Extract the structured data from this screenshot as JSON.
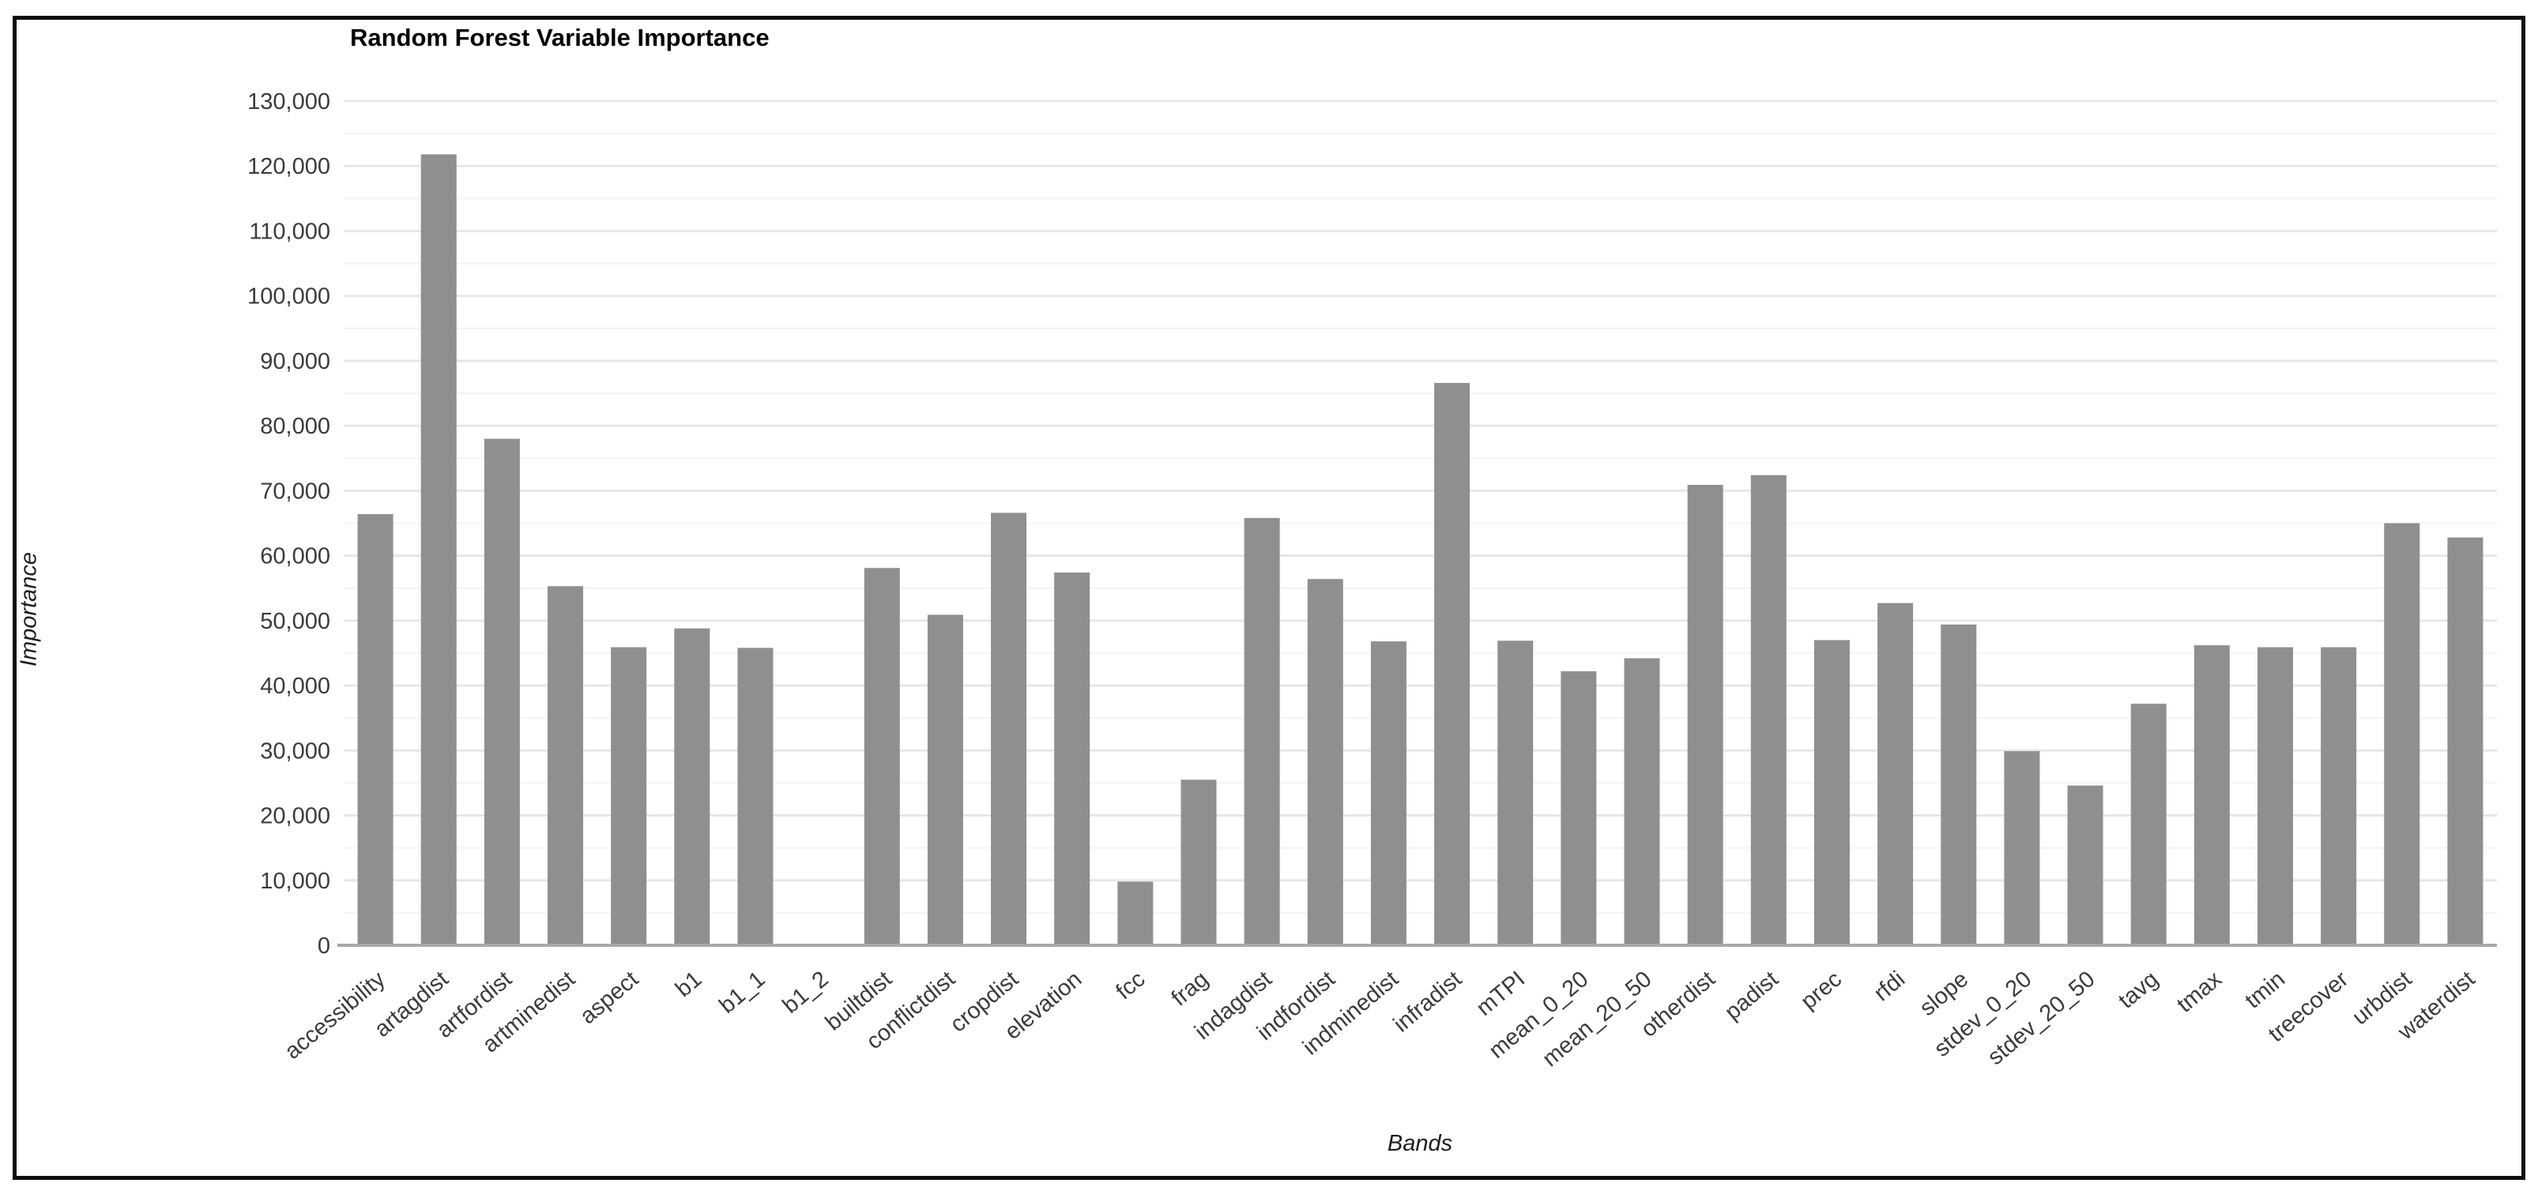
{
  "window": {
    "background": "#ffffff",
    "frame_border_color": "#0e0e0e"
  },
  "chart_data": {
    "type": "bar",
    "title": "Random Forest Variable Importance",
    "xlabel": "Bands",
    "ylabel": "Importance",
    "legend": "none",
    "grid": "horizontal, major every 10000 with faint minor every 5000",
    "ylim": [
      0,
      130000
    ],
    "y_major_step": 10000,
    "y_minor_step": 5000,
    "y_tick_labels": [
      "0",
      "10,000",
      "20,000",
      "30,000",
      "40,000",
      "50,000",
      "60,000",
      "70,000",
      "80,000",
      "90,000",
      "100,000",
      "110,000",
      "120,000",
      "130,000"
    ],
    "categories": [
      "accessibility",
      "artagdist",
      "artfordist",
      "artminedist",
      "aspect",
      "b1",
      "b1_1",
      "b1_2",
      "builtdist",
      "conflictdist",
      "cropdist",
      "elevation",
      "fcc",
      "frag",
      "indagdist",
      "indfordist",
      "indminedist",
      "infradist",
      "mTPI",
      "mean_0_20",
      "mean_20_50",
      "otherdist",
      "padist",
      "prec",
      "rfdi",
      "slope",
      "stdev_0_20",
      "stdev_20_50",
      "tavg",
      "tmax",
      "tmin",
      "treecover",
      "urbdist",
      "waterdist"
    ],
    "values": [
      66400,
      121800,
      78000,
      55300,
      45900,
      48800,
      45800,
      0,
      58100,
      50900,
      66600,
      57400,
      9800,
      25500,
      65800,
      56400,
      46800,
      86600,
      46900,
      42200,
      44200,
      70900,
      72400,
      47000,
      52700,
      49400,
      29900,
      24600,
      37200,
      46200,
      45900,
      45900,
      65000,
      62800
    ],
    "bar_color": "#8f8f8f",
    "major_gridline_color": "#e7e7e7",
    "minor_gridline_color": "#f4f4f4",
    "baseline_color": "#a8a8a8",
    "tick_label_color": "#3b3b3b"
  }
}
